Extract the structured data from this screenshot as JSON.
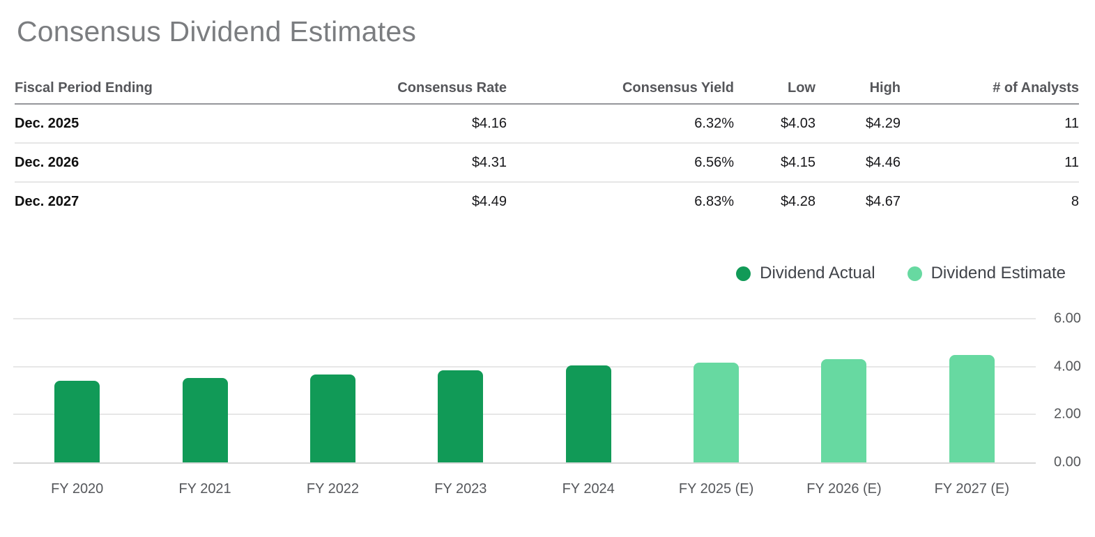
{
  "page": {
    "title": "Consensus Dividend Estimates"
  },
  "table": {
    "headers": [
      "Fiscal Period Ending",
      "Consensus Rate",
      "Consensus Yield",
      "Low",
      "High",
      "# of Analysts"
    ],
    "rows": [
      {
        "period": "Dec. 2025",
        "rate": "$4.16",
        "yield": "6.32%",
        "low": "$4.03",
        "high": "$4.29",
        "analysts": "11"
      },
      {
        "period": "Dec. 2026",
        "rate": "$4.31",
        "yield": "6.56%",
        "low": "$4.15",
        "high": "$4.46",
        "analysts": "11"
      },
      {
        "period": "Dec. 2027",
        "rate": "$4.49",
        "yield": "6.83%",
        "low": "$4.28",
        "high": "$4.67",
        "analysts": "8"
      }
    ]
  },
  "legend": {
    "items": [
      {
        "label": "Dividend Actual",
        "color": "#119a57"
      },
      {
        "label": "Dividend Estimate",
        "color": "#67d9a1"
      }
    ]
  },
  "chart_data": {
    "type": "bar",
    "title": "Consensus Dividend Estimates",
    "categories": [
      "FY 2020",
      "FY 2021",
      "FY 2022",
      "FY 2023",
      "FY 2024",
      "FY 2025 (E)",
      "FY 2026 (E)",
      "FY 2027 (E)"
    ],
    "series": [
      {
        "name": "Dividend Actual",
        "color": "#119a57",
        "values": [
          3.4,
          3.52,
          3.68,
          3.84,
          4.04,
          null,
          null,
          null
        ]
      },
      {
        "name": "Dividend Estimate",
        "color": "#67d9a1",
        "values": [
          null,
          null,
          null,
          null,
          null,
          4.16,
          4.31,
          4.49
        ]
      }
    ],
    "ylim": [
      0,
      6
    ],
    "yticks": [
      {
        "value": 6,
        "label": "6.00"
      },
      {
        "value": 4,
        "label": "4.00"
      },
      {
        "value": 2,
        "label": "2.00"
      },
      {
        "value": 0,
        "label": "0.00"
      }
    ],
    "grid": true,
    "legend_position": "top-right",
    "yaxis_side": "right"
  }
}
